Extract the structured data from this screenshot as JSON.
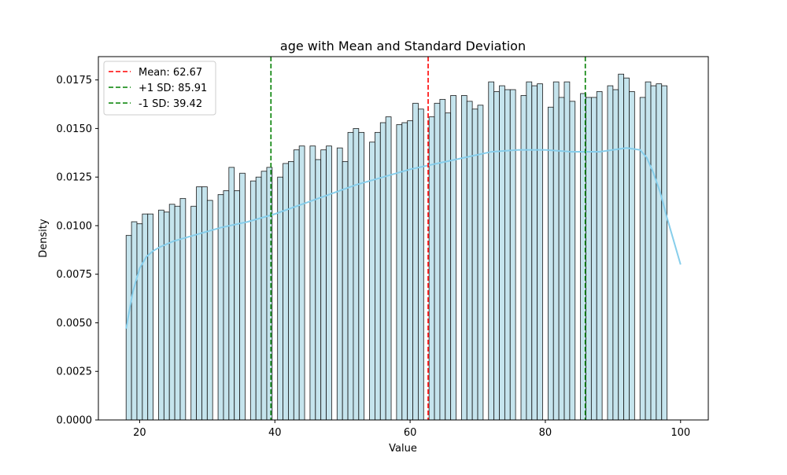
{
  "chart_data": {
    "type": "bar",
    "title": "age with Mean and Standard Deviation",
    "xlabel": "Value",
    "ylabel": "Density",
    "xlim": [
      13.9,
      104.1
    ],
    "ylim": [
      0,
      0.0187
    ],
    "xticks": [
      20,
      40,
      60,
      80,
      100
    ],
    "yticks": [
      0.0,
      0.0025,
      0.005,
      0.0075,
      0.01,
      0.0125,
      0.015,
      0.0175
    ],
    "ytick_labels": [
      "0.0000",
      "0.0025",
      "0.0050",
      "0.0075",
      "0.0100",
      "0.0125",
      "0.0150",
      "0.0175"
    ],
    "grid": false,
    "legend_position": "upper left",
    "bar_color": "#add8e6",
    "bar_edge_color": "#1a1a1a",
    "kde_color": "#87ceeb",
    "histogram": {
      "bin_starts": [
        18.0,
        18.8,
        19.6,
        20.4,
        21.2,
        22.0,
        22.8,
        23.6,
        24.4,
        25.2,
        26.0,
        26.8,
        27.6,
        28.4,
        29.2,
        30.0,
        30.8,
        31.6,
        32.4,
        33.2,
        34.0,
        34.8,
        35.6,
        36.4,
        37.2,
        38.0,
        38.8,
        39.6,
        40.4,
        41.2,
        42.0,
        42.8,
        43.6,
        44.4,
        45.2,
        46.0,
        46.8,
        47.6,
        48.4,
        49.2,
        50.0,
        50.8,
        51.6,
        52.4,
        53.2,
        54.0,
        54.8,
        55.6,
        56.4,
        57.2,
        58.0,
        58.8,
        59.6,
        60.4,
        61.2,
        62.0,
        62.8,
        63.6,
        64.4,
        65.2,
        66.0,
        66.8,
        67.6,
        68.4,
        69.2,
        70.0,
        70.8,
        71.6,
        72.4,
        73.2,
        74.0,
        74.8,
        75.6,
        76.4,
        77.2,
        78.0,
        78.8,
        79.6,
        80.4,
        81.2,
        82.0,
        82.8,
        83.6,
        84.4,
        85.2,
        86.0,
        86.8,
        87.6,
        88.4,
        89.2,
        90.0,
        90.8,
        91.6,
        92.4,
        93.2,
        94.0,
        94.8,
        95.6,
        96.4,
        97.2,
        98.0,
        98.8,
        99.6
      ],
      "bin_width": 0.8,
      "values": [
        0.0095,
        0.0102,
        0.0101,
        0.0106,
        0.0106,
        0.0,
        0.0108,
        0.0107,
        0.0111,
        0.011,
        0.0114,
        0.0,
        0.011,
        0.012,
        0.012,
        0.0113,
        0.0,
        0.0116,
        0.0118,
        0.013,
        0.0118,
        0.0127,
        0.0,
        0.0123,
        0.0125,
        0.0128,
        0.013,
        0.0,
        0.0125,
        0.0132,
        0.0133,
        0.0139,
        0.0141,
        0.0,
        0.0141,
        0.0134,
        0.0139,
        0.0141,
        0.0,
        0.014,
        0.0133,
        0.0148,
        0.015,
        0.0148,
        0.0,
        0.0143,
        0.0148,
        0.0153,
        0.0156,
        0.0,
        0.0152,
        0.0153,
        0.0154,
        0.0163,
        0.016,
        0.0,
        0.0156,
        0.0163,
        0.0165,
        0.0158,
        0.0167,
        0.0,
        0.0167,
        0.0164,
        0.016,
        0.0162,
        0.0,
        0.0174,
        0.0169,
        0.0172,
        0.017,
        0.017,
        0.0,
        0.0167,
        0.0174,
        0.0172,
        0.0173,
        0.0,
        0.0161,
        0.0174,
        0.0166,
        0.0174,
        0.0164,
        0.0,
        0.0168,
        0.0166,
        0.0166,
        0.0169,
        0.0,
        0.0172,
        0.017,
        0.0178,
        0.0176,
        0.0169,
        0.0,
        0.0166,
        0.0174,
        0.0172,
        0.0173,
        0.0172,
        0.0,
        0.0,
        0.0
      ]
    },
    "kde": {
      "x": [
        18,
        19,
        20,
        21,
        22,
        23,
        25,
        28,
        32,
        36,
        40,
        44,
        48,
        52,
        56,
        60,
        64,
        68,
        72,
        76,
        80,
        84,
        88,
        92,
        94,
        95,
        96,
        97,
        98,
        99,
        100
      ],
      "y": [
        0.0047,
        0.0066,
        0.0078,
        0.0084,
        0.0087,
        0.0089,
        0.0092,
        0.0095,
        0.0099,
        0.0102,
        0.0106,
        0.0111,
        0.0116,
        0.0121,
        0.0125,
        0.0129,
        0.0132,
        0.0135,
        0.0138,
        0.0139,
        0.0139,
        0.0138,
        0.0138,
        0.014,
        0.0139,
        0.0135,
        0.0127,
        0.0117,
        0.0104,
        0.0092,
        0.008
      ]
    },
    "vlines": [
      {
        "label": "Mean: 62.67",
        "x": 62.67,
        "color": "#ff0000"
      },
      {
        "label": "+1 SD: 85.91",
        "x": 85.91,
        "color": "#008000"
      },
      {
        "label": "-1 SD: 39.42",
        "x": 39.42,
        "color": "#008000"
      }
    ]
  }
}
